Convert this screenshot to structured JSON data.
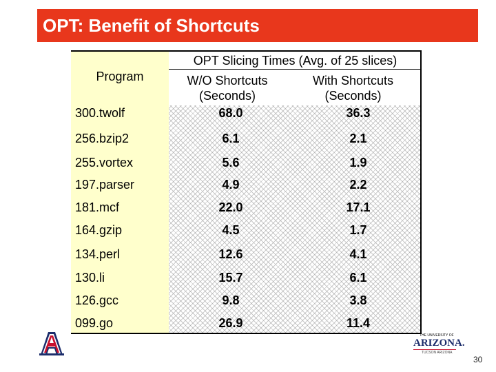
{
  "title": "OPT: Benefit of Shortcuts",
  "table": {
    "program_header": "Program",
    "group_header": "OPT Slicing Times (Avg. of 25 slices)",
    "col1_header_line1": "W/O Shortcuts",
    "col1_header_line2": "(Seconds)",
    "col2_header_line1": "With Shortcuts",
    "col2_header_line2": "(Seconds)",
    "rows": [
      {
        "program": "300.twolf",
        "without": "68.0",
        "with": "36.3"
      },
      {
        "program": "256.bzip2",
        "without": "6.1",
        "with": "2.1"
      },
      {
        "program": "255.vortex",
        "without": "5.6",
        "with": "1.9"
      },
      {
        "program": "197.parser",
        "without": "4.9",
        "with": "2.2"
      },
      {
        "program": "181.mcf",
        "without": "22.0",
        "with": "17.1"
      },
      {
        "program": "164.gzip",
        "without": "4.5",
        "with": "1.7"
      },
      {
        "program": "134.perl",
        "without": "12.6",
        "with": "4.1"
      },
      {
        "program": "130.li",
        "without": "15.7",
        "with": "6.1"
      },
      {
        "program": "126.gcc",
        "without": "9.8",
        "with": "3.8"
      },
      {
        "program": "099.go",
        "without": "26.9",
        "with": "11.4"
      }
    ]
  },
  "logos": {
    "right_small_top": "THE UNIVERSITY OF",
    "right_word": "ARIZONA.",
    "right_small_bottom": "TUCSON ARIZONA",
    "left_icon": "university-block-a-logo"
  },
  "page_number": "30",
  "colors": {
    "title_bar": "#e8371c",
    "program_column": "#ffffcc",
    "logo_red": "#c8102e",
    "logo_navy": "#1c2d6b"
  }
}
